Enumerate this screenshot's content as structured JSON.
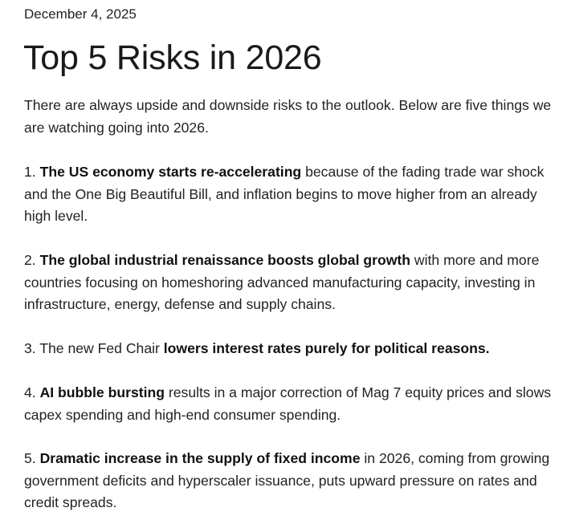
{
  "article": {
    "date": "December 4, 2025",
    "title": "Top 5 Risks in 2026",
    "intro": "There are always upside and downside risks to the outlook. Below are five things we are watching going into 2026."
  },
  "risks": [
    {
      "number": "1.",
      "pre": "",
      "bold": "The US economy starts re-accelerating",
      "post": "because of the fading trade war shock and the One Big Beautiful Bill, and inflation begins to move higher from an already high level."
    },
    {
      "number": "2.",
      "pre": "",
      "bold": "The global industrial renaissance boosts global growth",
      "post": "with more and more countries focusing on homeshoring advanced manufacturing capacity, investing in infrastructure, energy, defense and supply chains."
    },
    {
      "number": "3.",
      "pre": "The new Fed Chair",
      "bold": "lowers interest rates purely for political reasons.",
      "post": ""
    },
    {
      "number": "4.",
      "pre": "",
      "bold": "AI bubble bursting",
      "post": "results in a major correction of Mag 7 equity prices and slows capex spending and high-end consumer spending."
    },
    {
      "number": "5.",
      "pre": "",
      "bold": "Dramatic increase in the supply of fixed income",
      "post": "in 2026, coming from growing government deficits and hyperscaler issuance, puts upward pressure on rates and credit spreads."
    }
  ]
}
